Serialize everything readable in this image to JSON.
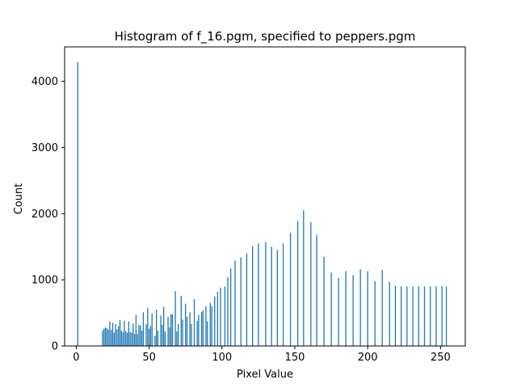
{
  "chart_data": {
    "type": "bar",
    "title": "Histogram of f_16.pgm, specified to peppers.pgm",
    "xlabel": "Pixel Value",
    "ylabel": "Count",
    "xlim": [
      -8,
      267
    ],
    "ylim": [
      0,
      4520
    ],
    "xticks": [
      0,
      50,
      100,
      150,
      200,
      250
    ],
    "yticks": [
      0,
      1000,
      2000,
      3000,
      4000
    ],
    "bar_color": "#1f77b4",
    "grid": false,
    "legend": "none",
    "x": [
      1,
      18,
      19,
      20,
      21,
      22,
      23,
      24,
      25,
      26,
      27,
      28,
      29,
      30,
      31,
      32,
      33,
      34,
      35,
      36,
      37,
      38,
      39,
      40,
      41,
      42,
      43,
      44,
      45,
      46,
      48,
      49,
      50,
      51,
      52,
      54,
      55,
      56,
      58,
      59,
      60,
      61,
      63,
      64,
      65,
      66,
      68,
      69,
      70,
      72,
      73,
      75,
      76,
      78,
      79,
      81,
      83,
      84,
      86,
      87,
      89,
      90,
      92,
      93,
      95,
      97,
      99,
      102,
      104,
      106,
      109,
      113,
      117,
      121,
      125,
      130,
      134,
      138,
      142,
      147,
      152,
      156,
      161,
      165,
      170,
      175,
      180,
      185,
      190,
      195,
      200,
      205,
      210,
      215,
      219,
      223,
      227,
      231,
      235,
      239,
      243,
      247,
      251,
      254
    ],
    "values": [
      4290,
      230,
      260,
      280,
      270,
      250,
      370,
      240,
      350,
      200,
      330,
      250,
      300,
      390,
      230,
      210,
      380,
      220,
      200,
      370,
      210,
      200,
      340,
      180,
      470,
      180,
      320,
      310,
      230,
      510,
      330,
      580,
      260,
      300,
      490,
      150,
      550,
      230,
      460,
      320,
      590,
      220,
      440,
      280,
      480,
      480,
      830,
      220,
      330,
      760,
      400,
      640,
      440,
      510,
      330,
      710,
      380,
      470,
      510,
      540,
      600,
      370,
      650,
      600,
      750,
      820,
      880,
      900,
      1040,
      1170,
      1290,
      1340,
      1400,
      1510,
      1550,
      1570,
      1500,
      1450,
      1550,
      1710,
      1890,
      2050,
      1870,
      1680,
      1350,
      1110,
      1030,
      1130,
      1070,
      1160,
      1130,
      980,
      1150,
      970,
      910,
      900,
      900,
      900,
      900,
      900,
      900,
      900,
      900,
      900
    ],
    "y_note": ""
  }
}
